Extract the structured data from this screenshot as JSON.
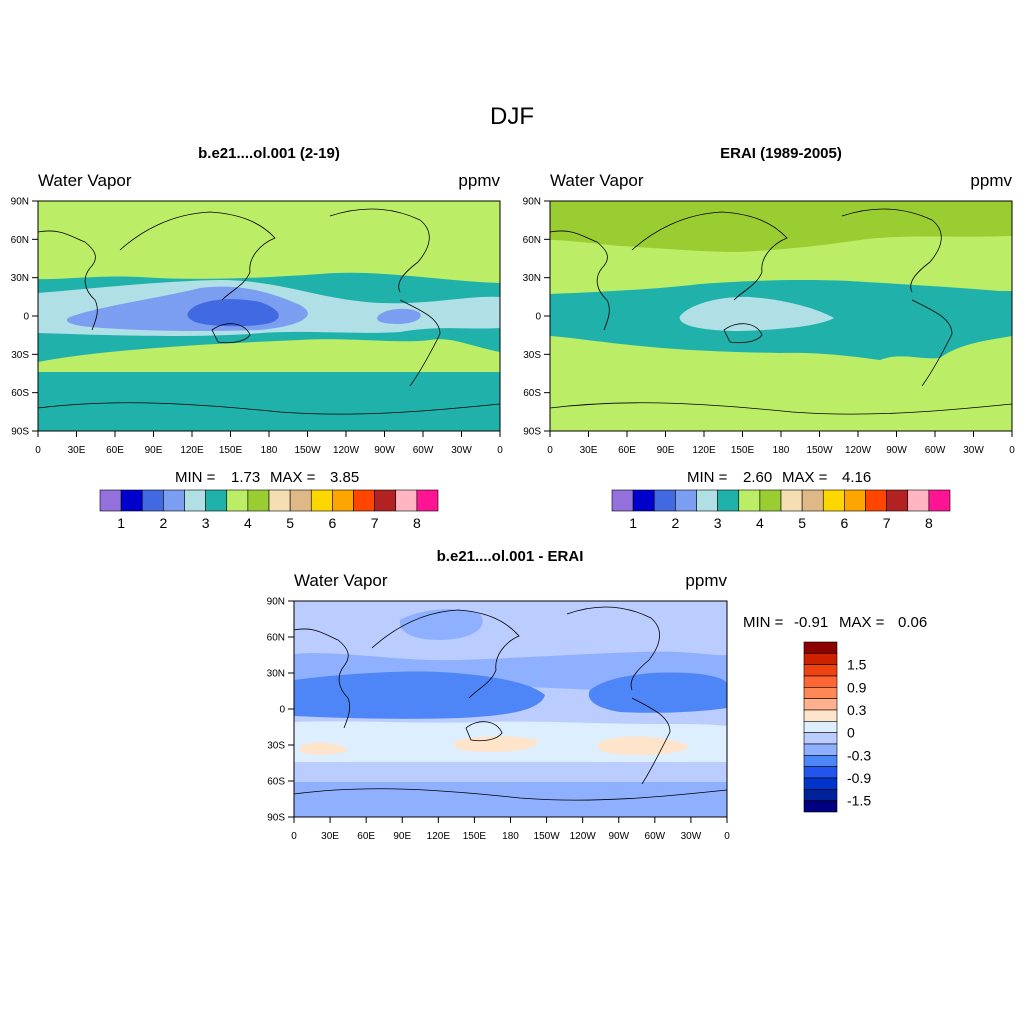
{
  "title": "DJF",
  "panels": [
    {
      "title": "b.e21....ol.001 (2-19)",
      "left_label": "Water Vapor",
      "right_label": "ppmv",
      "stats": {
        "min_label": "MIN =",
        "min": "1.73",
        "max_label": "MAX =",
        "max": "3.85"
      }
    },
    {
      "title": "ERAI (1989-2005)",
      "left_label": "Water Vapor",
      "right_label": "ppmv",
      "stats": {
        "min_label": "MIN =",
        "min": "2.60",
        "max_label": "MAX =",
        "max": "4.16"
      }
    },
    {
      "title": "b.e21....ol.001 - ERAI",
      "left_label": "Water Vapor",
      "right_label": "ppmv",
      "stats": {
        "min_label": "MIN =",
        "min": "-0.91",
        "max_label": "MAX =",
        "max": "0.06"
      }
    }
  ],
  "axes": {
    "lat_ticks": [
      "90N",
      "60N",
      "30N",
      "0",
      "30S",
      "60S",
      "90S"
    ],
    "lon_ticks": [
      "0",
      "30E",
      "60E",
      "90E",
      "120E",
      "150E",
      "180",
      "150W",
      "120W",
      "90W",
      "60W",
      "30W",
      "0"
    ]
  },
  "colorbar_abs": {
    "colors": [
      "#9370DB",
      "#0000CD",
      "#4169E1",
      "#7B9EF0",
      "#B0E0E6",
      "#20B2AA",
      "#BBEE66",
      "#9ACD32",
      "#F5DEB3",
      "#DEB887",
      "#FFD700",
      "#FFA500",
      "#FF4500",
      "#B22222",
      "#FFB6C1",
      "#FF1493"
    ],
    "labels": [
      "1",
      "2",
      "3",
      "4",
      "5",
      "6",
      "7",
      "8"
    ]
  },
  "colorbar_diff": {
    "colors_top_to_bottom": [
      "#8B0000",
      "#CC2200",
      "#EE4411",
      "#FF6633",
      "#FF8855",
      "#FFB08F",
      "#FFE4CC",
      "#DDEEFF",
      "#BBCCFF",
      "#8FB0FF",
      "#4F86F7",
      "#2255EE",
      "#0033CC",
      "#002299",
      "#000080"
    ],
    "labels": [
      "1.5",
      "0.9",
      "0.3",
      "0",
      "-0.3",
      "-0.9",
      "-1.5"
    ]
  },
  "chart_data": [
    {
      "type": "heatmap",
      "title": "b.e21....ol.001 (2-19)",
      "variable": "Water Vapor",
      "units": "ppmv",
      "min": 1.73,
      "max": 3.85,
      "levels": [
        1,
        1.5,
        2,
        2.5,
        3,
        3.5,
        4,
        4.5,
        5,
        5.5,
        6,
        6.5,
        7,
        7.5,
        8
      ],
      "xlim": [
        0,
        360
      ],
      "ylim": [
        -90,
        90
      ]
    },
    {
      "type": "heatmap",
      "title": "ERAI (1989-2005)",
      "variable": "Water Vapor",
      "units": "ppmv",
      "min": 2.6,
      "max": 4.16,
      "levels": [
        1,
        1.5,
        2,
        2.5,
        3,
        3.5,
        4,
        4.5,
        5,
        5.5,
        6,
        6.5,
        7,
        7.5,
        8
      ],
      "xlim": [
        0,
        360
      ],
      "ylim": [
        -90,
        90
      ]
    },
    {
      "type": "heatmap",
      "title": "b.e21....ol.001 - ERAI",
      "variable": "Water Vapor",
      "units": "ppmv",
      "min": -0.91,
      "max": 0.06,
      "levels": [
        -1.8,
        -1.5,
        -1.2,
        -0.9,
        -0.6,
        -0.3,
        0,
        0.3,
        0.6,
        0.9,
        1.2,
        1.5,
        1.8
      ],
      "xlim": [
        0,
        360
      ],
      "ylim": [
        -90,
        90
      ]
    }
  ]
}
